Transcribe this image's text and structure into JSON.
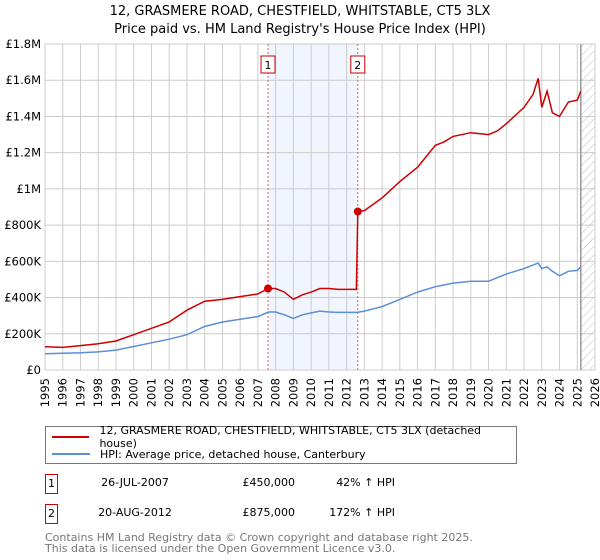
{
  "chart_data": {
    "type": "line",
    "title": "12, GRASMERE ROAD, CHESTFIELD, WHITSTABLE, CT5 3LX",
    "subtitle": "Price paid vs. HM Land Registry's House Price Index (HPI)",
    "xlim": [
      1995,
      2026
    ],
    "ylim": [
      0,
      1800000
    ],
    "x_ticks": [
      "1995",
      "1996",
      "1997",
      "1998",
      "1999",
      "2000",
      "2001",
      "2002",
      "2003",
      "2004",
      "2005",
      "2006",
      "2007",
      "2008",
      "2009",
      "2010",
      "2011",
      "2012",
      "2013",
      "2014",
      "2015",
      "2016",
      "2017",
      "2018",
      "2019",
      "2020",
      "2021",
      "2022",
      "2023",
      "2024",
      "2025",
      "2026"
    ],
    "y_ticks": [
      {
        "v": 0,
        "label": "£0"
      },
      {
        "v": 200000,
        "label": "£200K"
      },
      {
        "v": 400000,
        "label": "£400K"
      },
      {
        "v": 600000,
        "label": "£600K"
      },
      {
        "v": 800000,
        "label": "£800K"
      },
      {
        "v": 1000000,
        "label": "£1M"
      },
      {
        "v": 1200000,
        "label": "£1.2M"
      },
      {
        "v": 1400000,
        "label": "£1.4M"
      },
      {
        "v": 1600000,
        "label": "£1.6M"
      },
      {
        "v": 1800000,
        "label": "£1.8M"
      }
    ],
    "grid": true,
    "highlight_range": [
      2007.57,
      2012.63
    ],
    "forecast_hatch_from": 2025.2,
    "series": [
      {
        "name": "12, GRASMERE ROAD, CHESTFIELD, WHITSTABLE, CT5 3LX (detached house)",
        "color": "#cc0000",
        "x": [
          1995,
          1996,
          1997,
          1998,
          1999,
          2000,
          2001,
          2002,
          2003,
          2004,
          2005,
          2006,
          2007,
          2007.57,
          2008,
          2008.5,
          2009,
          2009.5,
          2010,
          2010.5,
          2011,
          2011.5,
          2012,
          2012.55,
          2012.63,
          2013,
          2014,
          2015,
          2016,
          2017,
          2017.5,
          2018,
          2019,
          2020,
          2020.5,
          2021,
          2022,
          2022.5,
          2022.8,
          2023,
          2023.3,
          2023.6,
          2024,
          2024.5,
          2025,
          2025.2
        ],
        "y": [
          128000,
          125000,
          135000,
          145000,
          160000,
          195000,
          230000,
          265000,
          330000,
          380000,
          390000,
          405000,
          420000,
          450000,
          450000,
          430000,
          390000,
          415000,
          430000,
          450000,
          450000,
          445000,
          445000,
          445000,
          875000,
          880000,
          950000,
          1040000,
          1120000,
          1240000,
          1260000,
          1290000,
          1310000,
          1300000,
          1320000,
          1360000,
          1450000,
          1520000,
          1610000,
          1450000,
          1540000,
          1420000,
          1400000,
          1480000,
          1490000,
          1540000
        ]
      },
      {
        "name": "HPI: Average price, detached house, Canterbury",
        "color": "#5b8fd6",
        "x": [
          1995,
          1996,
          1997,
          1998,
          1999,
          2000,
          2001,
          2002,
          2003,
          2004,
          2005,
          2006,
          2007,
          2007.6,
          2008,
          2008.5,
          2009,
          2009.5,
          2010,
          2010.5,
          2011,
          2011.5,
          2012,
          2012.6,
          2013,
          2014,
          2015,
          2016,
          2017,
          2018,
          2019,
          2020,
          2021,
          2022,
          2022.8,
          2023,
          2023.3,
          2023.6,
          2024,
          2024.5,
          2025,
          2025.2
        ],
        "y": [
          90000,
          92000,
          95000,
          100000,
          110000,
          130000,
          150000,
          170000,
          195000,
          240000,
          265000,
          280000,
          295000,
          320000,
          320000,
          305000,
          285000,
          305000,
          315000,
          325000,
          320000,
          318000,
          318000,
          318000,
          325000,
          350000,
          390000,
          430000,
          460000,
          480000,
          490000,
          490000,
          530000,
          560000,
          590000,
          560000,
          570000,
          545000,
          520000,
          545000,
          550000,
          570000
        ]
      }
    ],
    "sales": [
      {
        "n": "1",
        "x": 2007.57,
        "y": 450000
      },
      {
        "n": "2",
        "x": 2012.63,
        "y": 875000
      }
    ]
  },
  "title": {
    "line1": "12, GRASMERE ROAD, CHESTFIELD, WHITSTABLE, CT5 3LX",
    "line2": "Price paid vs. HM Land Registry's House Price Index (HPI)"
  },
  "legend": {
    "property": "12, GRASMERE ROAD, CHESTFIELD, WHITSTABLE, CT5 3LX (detached house)",
    "hpi": "HPI: Average price, detached house, Canterbury"
  },
  "transactions": [
    {
      "n": "1",
      "date": "26-JUL-2007",
      "price": "£450,000",
      "hpi": "42% ↑ HPI"
    },
    {
      "n": "2",
      "date": "20-AUG-2012",
      "price": "£875,000",
      "hpi": "172% ↑ HPI"
    }
  ],
  "footer": {
    "line1": "Contains HM Land Registry data © Crown copyright and database right 2025.",
    "line2": "This data is licensed under the Open Government Licence v3.0."
  }
}
